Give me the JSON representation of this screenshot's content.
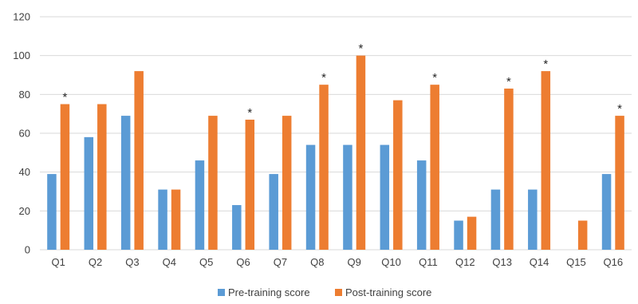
{
  "chart_data": {
    "type": "bar",
    "categories": [
      "Q1",
      "Q2",
      "Q3",
      "Q4",
      "Q5",
      "Q6",
      "Q7",
      "Q8",
      "Q9",
      "Q10",
      "Q11",
      "Q12",
      "Q13",
      "Q14",
      "Q15",
      "Q16"
    ],
    "series": [
      {
        "name": "Pre-training score",
        "color": "#5b9bd5",
        "values": [
          39,
          58,
          69,
          31,
          46,
          23,
          39,
          54,
          54,
          54,
          46,
          15,
          31,
          31,
          0,
          39
        ]
      },
      {
        "name": "Post-training score",
        "color": "#ed7d31",
        "values": [
          75,
          75,
          92,
          31,
          69,
          67,
          69,
          85,
          100,
          77,
          85,
          17,
          83,
          92,
          15,
          69
        ]
      }
    ],
    "significance_marker": "*",
    "significant_categories": [
      "Q1",
      "Q6",
      "Q8",
      "Q9",
      "Q11",
      "Q13",
      "Q14",
      "Q16"
    ],
    "ylim": [
      0,
      120
    ],
    "yticks": [
      0,
      20,
      40,
      60,
      80,
      100,
      120
    ],
    "grid": true,
    "legend_position": "bottom",
    "title": "",
    "xlabel": "",
    "ylabel": ""
  }
}
